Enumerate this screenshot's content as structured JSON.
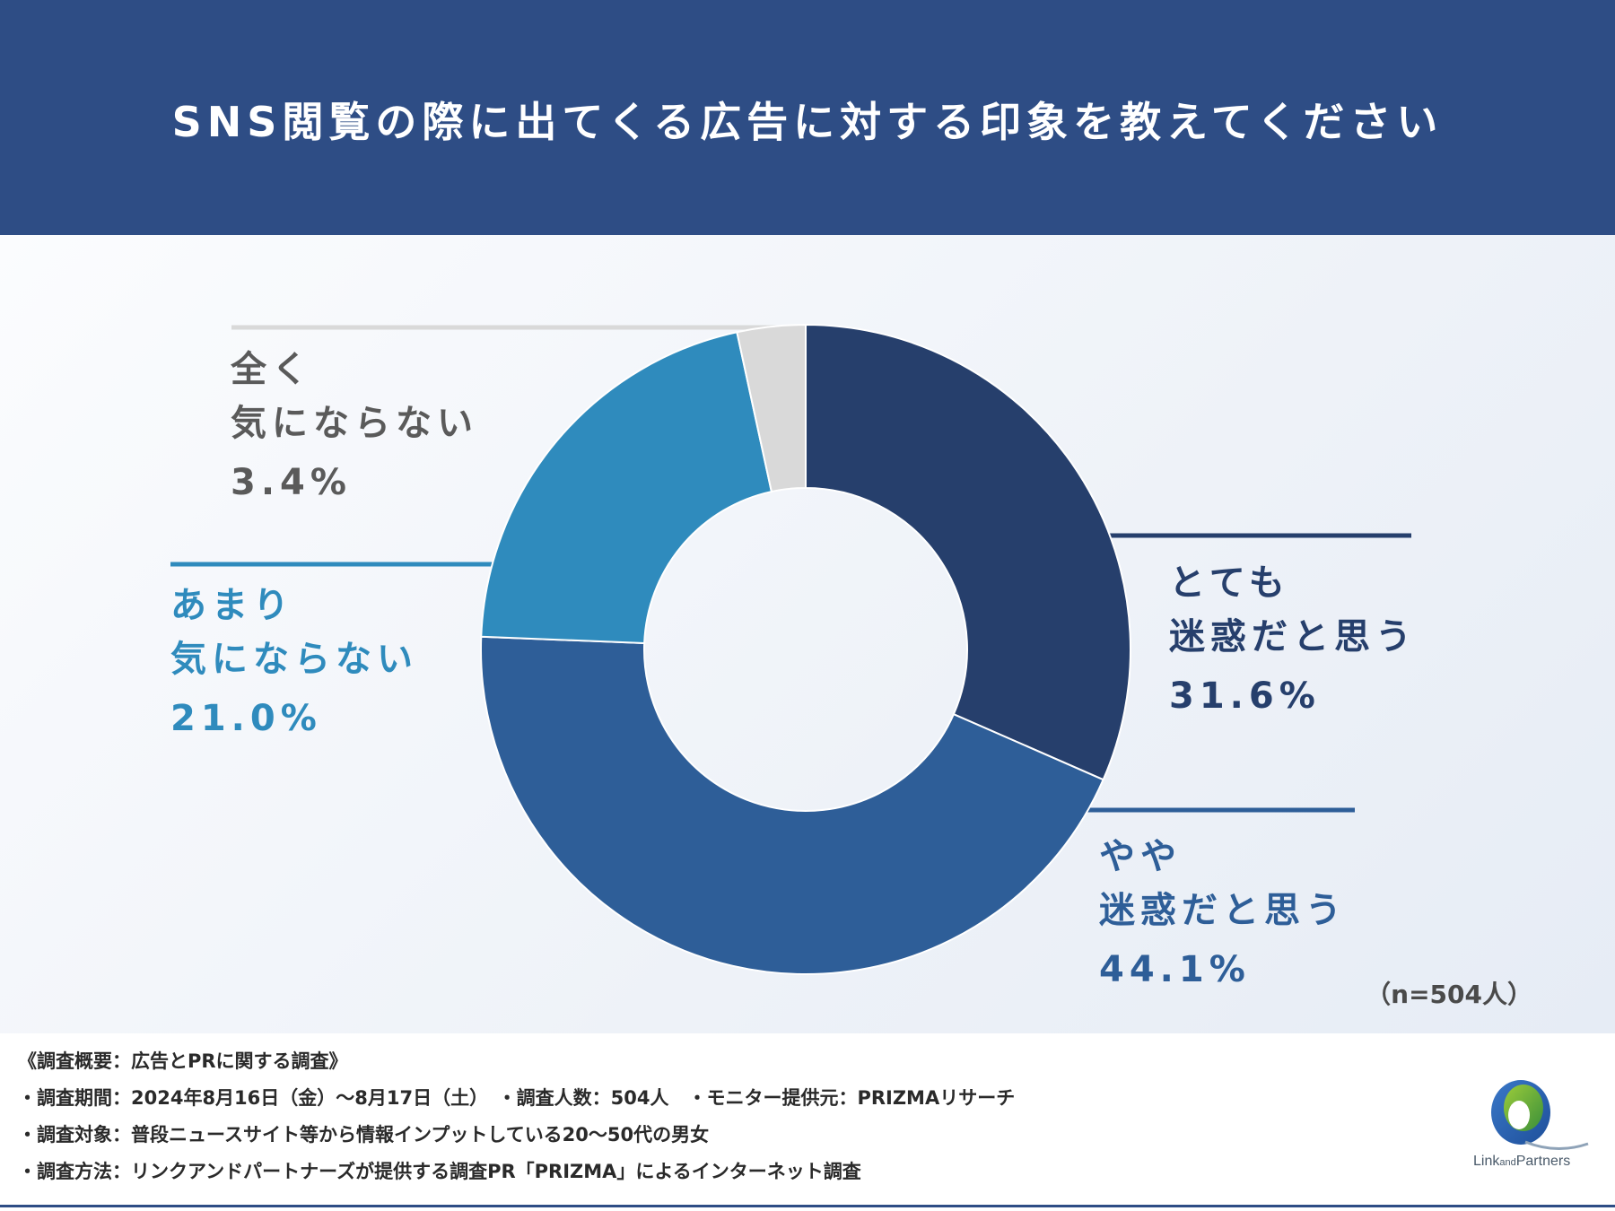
{
  "title": "SNS閲覧の際に出てくる広告に対する印象を教えてください",
  "chart_data": {
    "type": "pie",
    "donut": true,
    "categories": [
      "とても迷惑だと思う",
      "やや迷惑だと思う",
      "あまり気にならない",
      "全く気にならない"
    ],
    "values": [
      31.6,
      44.1,
      21.0,
      3.4
    ],
    "colors": [
      "#263f6c",
      "#2e5e98",
      "#2f8bbd",
      "#d9d9d9"
    ],
    "labels": [
      {
        "lines": [
          "とても",
          "迷惑だと思う"
        ],
        "pct": "31.6%",
        "color": "#263f6c"
      },
      {
        "lines": [
          "やや",
          "迷惑だと思う"
        ],
        "pct": "44.1%",
        "color": "#2e5e98"
      },
      {
        "lines": [
          "あまり",
          "気にならない"
        ],
        "pct": "21.0%",
        "color": "#2f8bbd"
      },
      {
        "lines": [
          "全く",
          "気にならない"
        ],
        "pct": "3.4%",
        "color": "#5a5a5a"
      }
    ],
    "n_label": "（n=504人）"
  },
  "footer": {
    "line1": "《調査概要：広告とPRに関する調査》",
    "line2": "・調査期間：2024年8月16日（金）〜8月17日（土）　・調査人数：504人　・モニター提供元：PRIZMAリサーチ",
    "line3": "・調査対象：普段ニュースサイト等から情報インプットしている20〜50代の男女",
    "line4": "・調査方法：リンクアンドパートナーズが提供する調査PR「PRIZMA」によるインターネット調査"
  },
  "logo": {
    "text_1": "Link",
    "text_2": "and",
    "text_3": "Partners"
  }
}
